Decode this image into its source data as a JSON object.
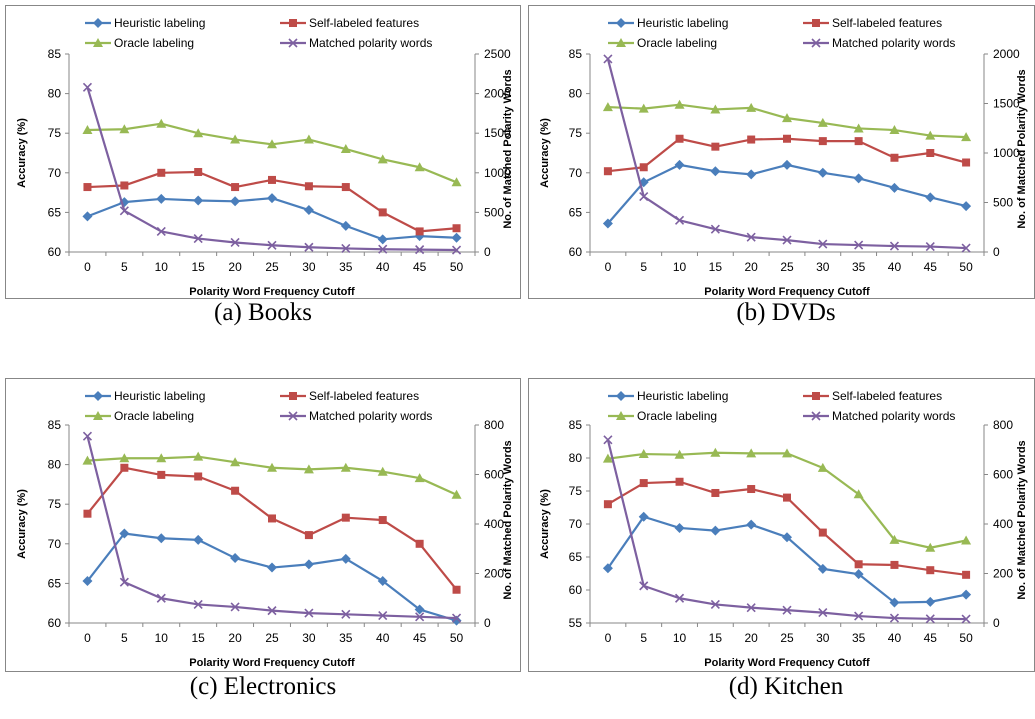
{
  "colors": {
    "heuristic": "#4a7ebb",
    "self": "#be4b48",
    "oracle": "#98b954",
    "matched": "#7d60a0"
  },
  "chart_data": [
    {
      "type": "line",
      "caption": "(a) Books",
      "xlabel": "Polarity Word Frequency Cutoff",
      "ylabel": "Accuracy (%)",
      "y2label": "No. of Matched Polarity Words",
      "x": [
        0,
        5,
        10,
        15,
        20,
        25,
        30,
        35,
        40,
        45,
        50
      ],
      "ylim": [
        60,
        85
      ],
      "yticks": [
        60,
        65,
        70,
        75,
        80,
        85
      ],
      "y2lim": [
        0,
        2500
      ],
      "y2ticks": [
        0,
        500,
        1000,
        1500,
        2000,
        2500
      ],
      "series": [
        {
          "name": "Heuristic labeling",
          "color": "heuristic",
          "marker": "diamond",
          "axis": "left",
          "values": [
            64.5,
            66.3,
            66.7,
            66.5,
            66.4,
            66.8,
            65.3,
            63.3,
            61.6,
            62.0,
            61.8
          ]
        },
        {
          "name": "Self-labeled features",
          "color": "self",
          "marker": "square",
          "axis": "left",
          "values": [
            68.2,
            68.4,
            70.0,
            70.1,
            68.2,
            69.1,
            68.3,
            68.2,
            65.0,
            62.6,
            63.0
          ]
        },
        {
          "name": "Oracle labeling",
          "color": "oracle",
          "marker": "triangle",
          "axis": "left",
          "values": [
            75.4,
            75.5,
            76.2,
            75.0,
            74.2,
            73.6,
            74.2,
            73.0,
            71.7,
            70.7,
            68.8
          ]
        },
        {
          "name": "Matched polarity words",
          "color": "matched",
          "marker": "x",
          "axis": "right",
          "values": [
            2080,
            520,
            260,
            170,
            120,
            85,
            60,
            45,
            35,
            30,
            25
          ]
        }
      ]
    },
    {
      "type": "line",
      "caption": "(b) DVDs",
      "xlabel": "Polarity Word Frequency Cutoff",
      "ylabel": "Accuracy (%)",
      "y2label": "No. of Matched Polarity Words",
      "x": [
        0,
        5,
        10,
        15,
        20,
        25,
        30,
        35,
        40,
        45,
        50
      ],
      "ylim": [
        60,
        85
      ],
      "yticks": [
        60,
        65,
        70,
        75,
        80,
        85
      ],
      "y2lim": [
        0,
        2000
      ],
      "y2ticks": [
        0,
        500,
        1000,
        1500,
        2000
      ],
      "series": [
        {
          "name": "Heuristic labeling",
          "color": "heuristic",
          "marker": "diamond",
          "axis": "left",
          "values": [
            63.6,
            68.8,
            71.0,
            70.2,
            69.8,
            71.0,
            70.0,
            69.3,
            68.1,
            66.9,
            65.8
          ]
        },
        {
          "name": "Self-labeled features",
          "color": "self",
          "marker": "square",
          "axis": "left",
          "values": [
            70.2,
            70.7,
            74.3,
            73.3,
            74.2,
            74.3,
            74.0,
            74.0,
            71.9,
            72.5,
            71.3
          ]
        },
        {
          "name": "Oracle labeling",
          "color": "oracle",
          "marker": "triangle",
          "axis": "left",
          "values": [
            78.3,
            78.1,
            78.6,
            78.0,
            78.2,
            76.9,
            76.3,
            75.6,
            75.4,
            74.7,
            74.5
          ]
        },
        {
          "name": "Matched polarity words",
          "color": "matched",
          "marker": "x",
          "axis": "right",
          "values": [
            1950,
            560,
            320,
            230,
            150,
            120,
            80,
            70,
            60,
            55,
            40
          ]
        }
      ]
    },
    {
      "type": "line",
      "caption": "(c) Electronics",
      "xlabel": "Polarity Word Frequency Cutoff",
      "ylabel": "Accuracy (%)",
      "y2label": "No. of Matched Polarity Words",
      "x": [
        0,
        5,
        10,
        15,
        20,
        25,
        30,
        35,
        40,
        45,
        50
      ],
      "ylim": [
        60,
        85
      ],
      "yticks": [
        60,
        65,
        70,
        75,
        80,
        85
      ],
      "y2lim": [
        0,
        800
      ],
      "y2ticks": [
        0,
        200,
        400,
        600,
        800
      ],
      "series": [
        {
          "name": "Heuristic labeling",
          "color": "heuristic",
          "marker": "diamond",
          "axis": "left",
          "values": [
            65.3,
            71.3,
            70.7,
            70.5,
            68.2,
            67.0,
            67.4,
            68.1,
            65.3,
            61.7,
            60.3
          ]
        },
        {
          "name": "Self-labeled features",
          "color": "self",
          "marker": "square",
          "axis": "left",
          "values": [
            73.8,
            79.6,
            78.7,
            78.5,
            76.7,
            73.2,
            71.1,
            73.3,
            73.0,
            70.0,
            64.2
          ]
        },
        {
          "name": "Oracle labeling",
          "color": "oracle",
          "marker": "triangle",
          "axis": "left",
          "values": [
            80.5,
            80.8,
            80.8,
            81.0,
            80.3,
            79.6,
            79.4,
            79.6,
            79.1,
            78.3,
            76.2
          ]
        },
        {
          "name": "Matched polarity words",
          "color": "matched",
          "marker": "x",
          "axis": "right",
          "values": [
            755,
            165,
            100,
            75,
            65,
            50,
            40,
            35,
            30,
            25,
            20
          ]
        }
      ]
    },
    {
      "type": "line",
      "caption": "(d) Kitchen",
      "xlabel": "Polarity Word Frequency Cutoff",
      "ylabel": "Accuracy (%)",
      "y2label": "No. of Matched Polarity Words",
      "x": [
        0,
        5,
        10,
        15,
        20,
        25,
        30,
        35,
        40,
        45,
        50
      ],
      "ylim": [
        55,
        85
      ],
      "yticks": [
        55,
        60,
        65,
        70,
        75,
        80,
        85
      ],
      "y2lim": [
        0,
        800
      ],
      "y2ticks": [
        0,
        200,
        400,
        600,
        800
      ],
      "series": [
        {
          "name": "Heuristic labeling",
          "color": "heuristic",
          "marker": "diamond",
          "axis": "left",
          "values": [
            63.3,
            71.1,
            69.4,
            69.0,
            69.9,
            68.0,
            63.2,
            62.4,
            58.1,
            58.2,
            59.3
          ]
        },
        {
          "name": "Self-labeled features",
          "color": "self",
          "marker": "square",
          "axis": "left",
          "values": [
            73.0,
            76.2,
            76.4,
            74.7,
            75.3,
            74.0,
            68.7,
            63.9,
            63.8,
            63.0,
            62.3
          ]
        },
        {
          "name": "Oracle labeling",
          "color": "oracle",
          "marker": "triangle",
          "axis": "left",
          "values": [
            79.9,
            80.6,
            80.5,
            80.8,
            80.7,
            80.7,
            78.5,
            74.5,
            67.6,
            66.4,
            67.5
          ]
        },
        {
          "name": "Matched polarity words",
          "color": "matched",
          "marker": "x",
          "axis": "right",
          "values": [
            740,
            150,
            100,
            75,
            62,
            52,
            42,
            28,
            20,
            17,
            16
          ]
        }
      ]
    }
  ]
}
